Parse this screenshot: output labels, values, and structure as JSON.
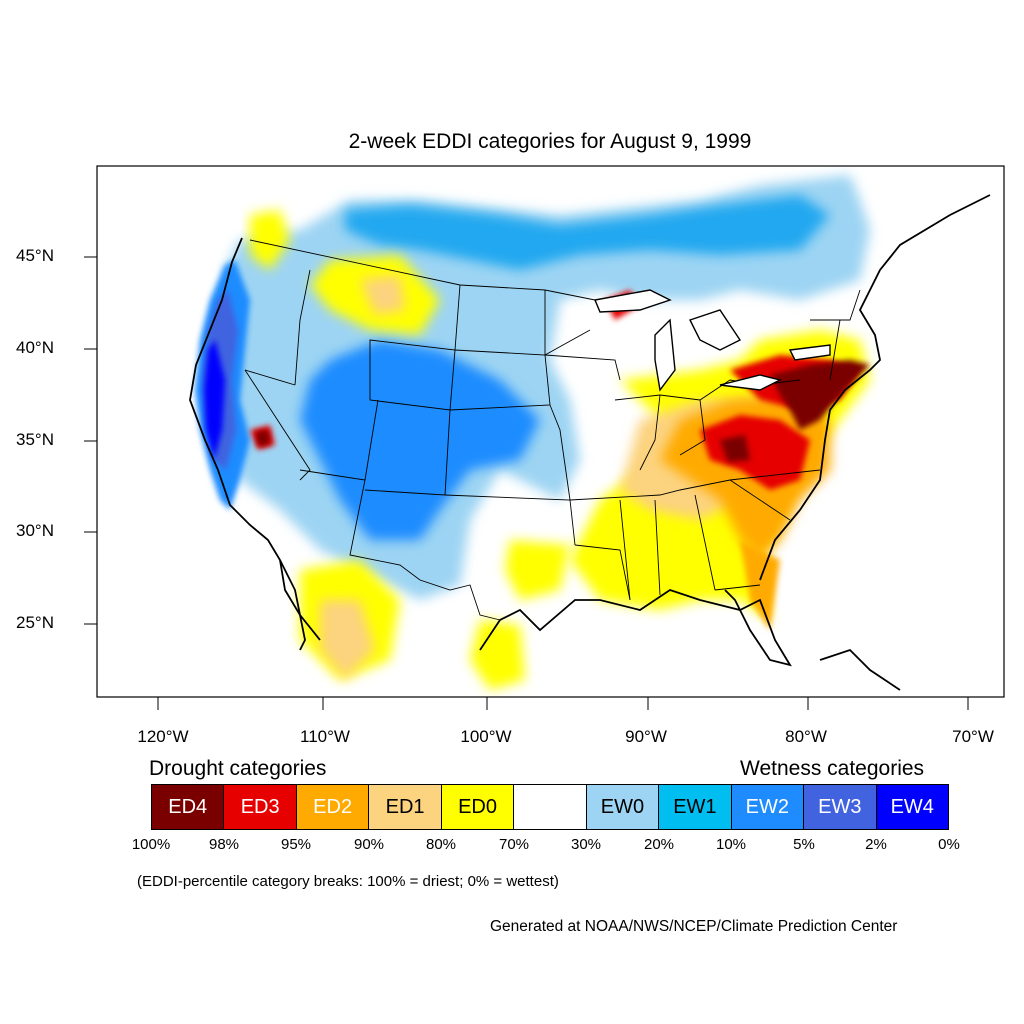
{
  "title": "2-week EDDI categories for August 9, 1999",
  "lat_labels": [
    "45°N",
    "40°N",
    "35°N",
    "30°N",
    "25°N"
  ],
  "lon_labels": [
    "120°W",
    "110°W",
    "100°W",
    "90°W",
    "80°W",
    "70°W"
  ],
  "legend": {
    "drought_heading": "Drought categories",
    "wetness_heading": "Wetness categories",
    "categories": [
      {
        "label": "ED4",
        "color": "#7a0000",
        "text_color": "#ffffff"
      },
      {
        "label": "ED3",
        "color": "#e60000",
        "text_color": "#ffffff"
      },
      {
        "label": "ED2",
        "color": "#ffaa00",
        "text_color": "#ffffff"
      },
      {
        "label": "ED1",
        "color": "#fcd37f",
        "text_color": "#000000"
      },
      {
        "label": "ED0",
        "color": "#ffff00",
        "text_color": "#000000"
      },
      {
        "label": "",
        "color": "#ffffff",
        "text_color": "#000000"
      },
      {
        "label": "EW0",
        "color": "#9dd4f3",
        "text_color": "#000000"
      },
      {
        "label": "EW1",
        "color": "#00bff0",
        "text_color": "#000000"
      },
      {
        "label": "EW2",
        "color": "#1e8cff",
        "text_color": "#ffffff"
      },
      {
        "label": "EW3",
        "color": "#4163e0",
        "text_color": "#ffffff"
      },
      {
        "label": "EW4",
        "color": "#0000ff",
        "text_color": "#ffffff"
      }
    ],
    "breaks": [
      "100%",
      "98%",
      "95%",
      "90%",
      "80%",
      "70%",
      "30%",
      "20%",
      "10%",
      "5%",
      "2%",
      "0%"
    ]
  },
  "note": "(EDDI-percentile category breaks: 100% = driest; 0% = wettest)",
  "credit": "Generated at NOAA/NWS/NCEP/Climate Prediction Center"
}
